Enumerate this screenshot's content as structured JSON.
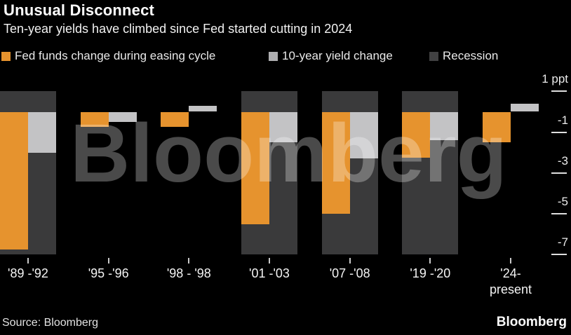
{
  "header": {
    "title": "Unusual Disconnect",
    "subtitle": "Ten-year yields have climbed since Fed started cutting in 2024"
  },
  "legend": {
    "items": [
      {
        "label": "Fed funds change during easing cycle",
        "color": "#E6932E"
      },
      {
        "label": "10-year yield change",
        "color": "#AFAFB1"
      },
      {
        "label": "Recession",
        "color": "#414142"
      }
    ]
  },
  "chart_data": {
    "type": "bar",
    "title": "Unusual Disconnect",
    "subtitle": "Ten-year yields have climbed since Fed started cutting in 2024",
    "unit": "ppt",
    "categories": [
      "'89 -'92",
      "'95 -'96",
      "'98 - '98",
      "'01 -'03",
      "'07 -'08",
      "'19 -'20",
      "'24-\npresent"
    ],
    "series": [
      {
        "name": "Fed funds change during easing cycle",
        "color": "#E6932E",
        "values": [
          -6.75,
          -0.75,
          -0.75,
          -5.5,
          -5.0,
          -2.25,
          -1.5
        ]
      },
      {
        "name": "10-year yield change",
        "color": "#C3C3C5",
        "values": [
          -2.0,
          -0.5,
          0.3,
          -1.5,
          -2.3,
          -1.4,
          0.4
        ]
      }
    ],
    "recession": [
      true,
      false,
      false,
      true,
      true,
      true,
      false
    ],
    "recession_color": "#3A3A3B",
    "y_ticks": [
      1,
      -1,
      -3,
      -5,
      -7
    ],
    "y_tick_labels": [
      "1 ppt",
      "-1",
      "-3",
      "-5",
      "-7"
    ],
    "ylim": [
      -7,
      1
    ],
    "grid": "off",
    "legend_position": "top"
  },
  "watermark": "Bloomberg",
  "footer": {
    "source": "Source: Bloomberg",
    "logo": "Bloomberg"
  },
  "colors": {
    "background": "#000000",
    "fed_funds_orange": "#E6932E",
    "ten_year_gray": "#C3C3C5",
    "recession_dark": "#3A3A3B",
    "watermark": "rgba(255,255,255,0.29)"
  }
}
